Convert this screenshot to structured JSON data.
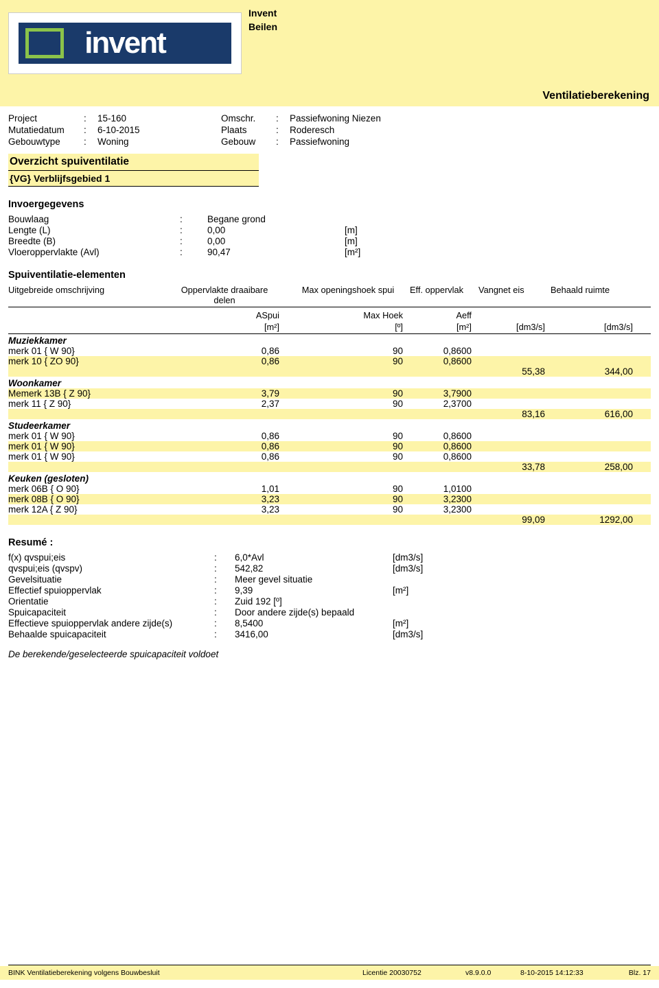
{
  "header": {
    "logo_text": "invent",
    "company_line1": "Invent",
    "company_line2": "Beilen",
    "doc_type": "Ventilatieberekening"
  },
  "project": {
    "project_label": "Project",
    "project_val": "15-160",
    "omschr_label": "Omschr.",
    "omschr_val": "Passiefwoning Niezen",
    "mutatie_label": "Mutatiedatum",
    "mutatie_val": "6-10-2015",
    "plaats_label": "Plaats",
    "plaats_val": "Roderesch",
    "gebouwtype_label": "Gebouwtype",
    "gebouwtype_val": "Woning",
    "gebouw_label": "Gebouw",
    "gebouw_val": "Passiefwoning"
  },
  "section": {
    "title": "Overzicht spuiventilatie",
    "sub": "{VG} Verblijfsgebied 1"
  },
  "invoer": {
    "heading": "Invoergegevens",
    "rows": [
      {
        "label": "Bouwlaag",
        "val": "Begane grond",
        "unit": ""
      },
      {
        "label": "Lengte (L)",
        "val": "0,00",
        "unit": "[m]"
      },
      {
        "label": "Breedte (B)",
        "val": "0,00",
        "unit": "[m]"
      },
      {
        "label": "Vloeroppervlakte (Avl)",
        "val": "90,47",
        "unit": "[m²]"
      }
    ]
  },
  "spui": {
    "heading": "Spuiventilatie-elementen",
    "header_row1": {
      "desc": "Uitgebreide omschrijving",
      "aspui": "Oppervlakte draaibare delen",
      "hoek": "Max openingshoek spui",
      "aeff": "Eff. oppervlak",
      "vang": "Vangnet eis",
      "beh": "Behaald ruimte"
    },
    "header_row2": {
      "aspui": "ASpui",
      "hoek": "Max Hoek",
      "aeff": "Aeff"
    },
    "header_row3": {
      "aspui": "[m²]",
      "hoek": "[º]",
      "aeff": "[m²]",
      "vang": "[dm3/s]",
      "beh": "[dm3/s]"
    },
    "rooms": [
      {
        "name": "Muziekkamer",
        "elements": [
          {
            "desc": "merk 01 { W 90}",
            "aspui": "0,86",
            "hoek": "90",
            "aeff": "0,8600",
            "hl": false
          },
          {
            "desc": "merk 10 { ZO 90}",
            "aspui": "0,86",
            "hoek": "90",
            "aeff": "0,8600",
            "hl": true
          }
        ],
        "sum": {
          "vang": "55,38",
          "beh": "344,00"
        }
      },
      {
        "name": "Woonkamer",
        "elements": [
          {
            "desc": "Memerk 13B { Z 90}",
            "aspui": "3,79",
            "hoek": "90",
            "aeff": "3,7900",
            "hl": true
          },
          {
            "desc": "merk 11 { Z 90}",
            "aspui": "2,37",
            "hoek": "90",
            "aeff": "2,3700",
            "hl": false
          }
        ],
        "sum": {
          "vang": "83,16",
          "beh": "616,00"
        }
      },
      {
        "name": "Studeerkamer",
        "elements": [
          {
            "desc": "merk 01 { W 90}",
            "aspui": "0,86",
            "hoek": "90",
            "aeff": "0,8600",
            "hl": false
          },
          {
            "desc": "merk 01 { W 90}",
            "aspui": "0,86",
            "hoek": "90",
            "aeff": "0,8600",
            "hl": true
          },
          {
            "desc": "merk 01 { W 90}",
            "aspui": "0,86",
            "hoek": "90",
            "aeff": "0,8600",
            "hl": false
          }
        ],
        "sum": {
          "vang": "33,78",
          "beh": "258,00"
        }
      },
      {
        "name": "Keuken (gesloten)",
        "elements": [
          {
            "desc": "merk 06B { O 90}",
            "aspui": "1,01",
            "hoek": "90",
            "aeff": "1,0100",
            "hl": false
          },
          {
            "desc": "merk 08B { O 90}",
            "aspui": "3,23",
            "hoek": "90",
            "aeff": "3,2300",
            "hl": true
          },
          {
            "desc": "merk 12A { Z 90}",
            "aspui": "3,23",
            "hoek": "90",
            "aeff": "3,2300",
            "hl": false
          }
        ],
        "sum": {
          "vang": "99,09",
          "beh": "1292,00"
        }
      }
    ]
  },
  "resume": {
    "heading": "Resumé :",
    "rows": [
      {
        "label": "f(x)  qvspui;eis",
        "val": "6,0*Avl",
        "unit": "[dm3/s]"
      },
      {
        "label": "qvspui;eis  (qvspv)",
        "val": "542,82",
        "unit": "[dm3/s]"
      },
      {
        "label": "Gevelsituatie",
        "val": "Meer gevel situatie",
        "unit": ""
      },
      {
        "label": "Effectief spuioppervlak",
        "val": "9,39",
        "unit": "[m²]"
      },
      {
        "label": "Orientatie",
        "val": "Zuid 192 [º]",
        "unit": ""
      },
      {
        "label": "Spuicapaciteit",
        "val": "Door andere zijde(s) bepaald",
        "unit": ""
      },
      {
        "label": "Effectieve spuioppervlak andere zijde(s)",
        "val": "8,5400",
        "unit": "[m²]"
      },
      {
        "label": "Behaalde spuicapaciteit",
        "val": "3416,00",
        "unit": "[dm3/s]"
      }
    ],
    "conclusion": "De berekende/geselecteerde spuicapaciteit voldoet"
  },
  "footer": {
    "left": "BINK Ventilatieberekening volgens Bouwbesluit",
    "licentie": "Licentie 20030752",
    "version": "v8.9.0.0",
    "date": "8-10-2015 14:12:33",
    "page": "Blz. 17"
  },
  "colors": {
    "highlight": "#fdf4a8",
    "logo_bg": "#1a3a6a",
    "logo_accent": "#8bc34a",
    "text": "#000000"
  }
}
